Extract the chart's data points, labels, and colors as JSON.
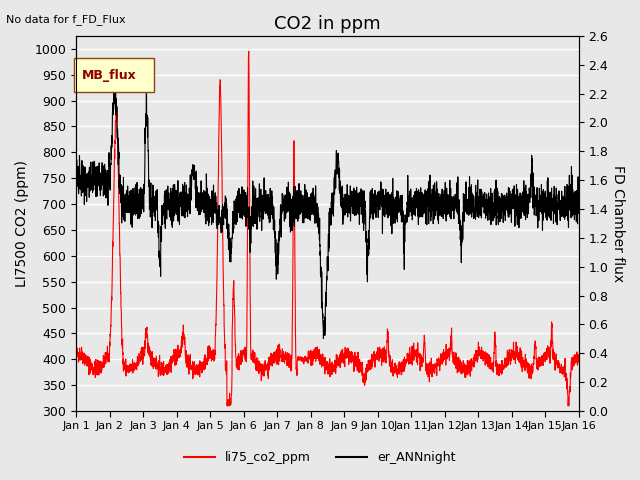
{
  "title": "CO2 in ppm",
  "top_left_text": "No data for f_FD_Flux",
  "ylabel_left": "LI7500 CO2 (ppm)",
  "ylabel_right": "FD Chamber flux",
  "ylim_left": [
    300,
    1025
  ],
  "ylim_right": [
    0.0,
    2.6
  ],
  "yticks_left": [
    300,
    350,
    400,
    450,
    500,
    550,
    600,
    650,
    700,
    750,
    800,
    850,
    900,
    950,
    1000
  ],
  "yticks_right": [
    0.0,
    0.2,
    0.4,
    0.6,
    0.8,
    1.0,
    1.2,
    1.4,
    1.6,
    1.8,
    2.0,
    2.2,
    2.4,
    2.6
  ],
  "xtick_labels": [
    "Jan 1",
    "Jan 2",
    "Jan 3",
    "Jan 4",
    "Jan 5",
    "Jan 6",
    "Jan 7",
    "Jan 8",
    "Jan 9",
    "Jan 10",
    "Jan 11",
    "Jan 12",
    "Jan 13",
    "Jan 14",
    "Jan 15",
    "Jan 16"
  ],
  "legend_label_red": "li75_co2_ppm",
  "legend_label_black": "er_ANNnight",
  "mb_flux_label": "MB_flux",
  "red_color": "#ff0000",
  "black_color": "#000000",
  "background_color": "#e8e8e8",
  "plot_bg_color": "#e8e8e8",
  "grid_color": "#ffffff",
  "n_points": 2880,
  "days": 15,
  "title_fontsize": 13,
  "label_fontsize": 10,
  "tick_fontsize": 9
}
